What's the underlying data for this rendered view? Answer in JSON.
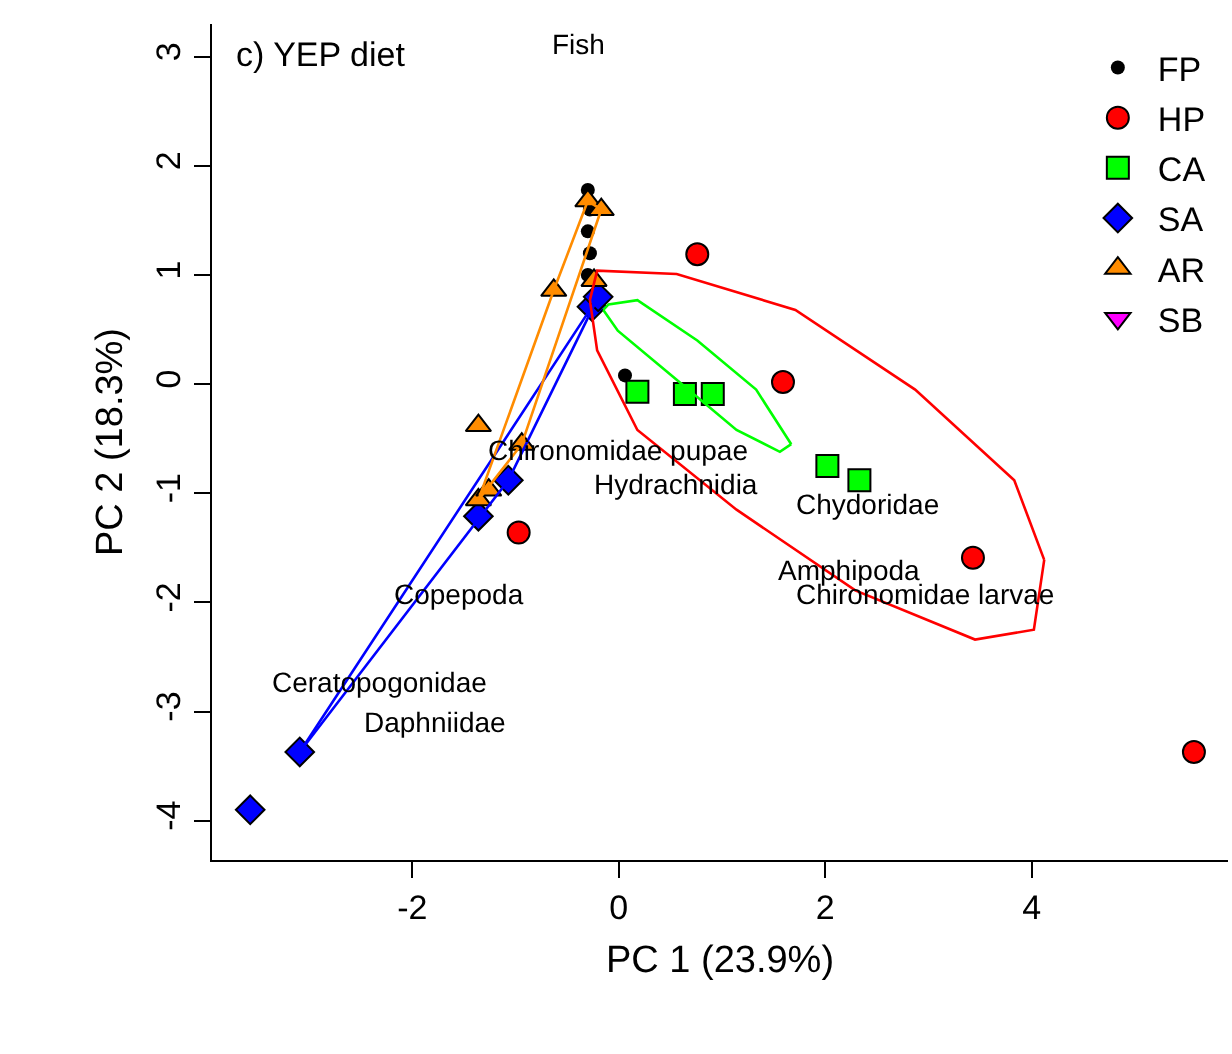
{
  "chart_data": {
    "type": "scatter",
    "title": "c) YEP diet",
    "xlabel": "PC 1 (23.9%)",
    "ylabel": "PC 2 (18.3%)",
    "xlim": [
      -3.94,
      5.9
    ],
    "ylim": [
      -4.36,
      3.3
    ],
    "xticks": [
      -2,
      0,
      2,
      4
    ],
    "yticks": [
      -4,
      -3,
      -2,
      -1,
      0,
      1,
      2,
      3
    ],
    "legend": "top right",
    "series": [
      {
        "name": "FP",
        "color": "#000000",
        "marker": "circle",
        "x": [
          -0.3,
          -0.28,
          -0.3,
          -0.28,
          -0.3,
          0.06
        ],
        "values": [
          1.78,
          1.6,
          1.4,
          1.2,
          1.0,
          0.08
        ]
      },
      {
        "name": "HP",
        "color": "#ff0000",
        "marker": "circle",
        "x": [
          0.76,
          1.59,
          3.43,
          -0.97,
          5.57
        ],
        "values": [
          1.19,
          0.02,
          -1.59,
          -1.36,
          -3.37
        ]
      },
      {
        "name": "CA",
        "color": "#00ff00",
        "marker": "square",
        "x": [
          0.18,
          0.64,
          0.91,
          2.02,
          2.33
        ],
        "values": [
          -0.07,
          -0.09,
          -0.09,
          -0.75,
          -0.88
        ]
      },
      {
        "name": "SA",
        "color": "#0000ff",
        "marker": "diamond",
        "x": [
          -3.57,
          -3.09,
          -1.07,
          -1.36,
          -0.26,
          -0.2
        ],
        "values": [
          -3.9,
          -3.37,
          -0.88,
          -1.21,
          0.71,
          0.8
        ]
      },
      {
        "name": "AR",
        "color": "#ff8c00",
        "marker": "triangle",
        "x": [
          -0.3,
          -0.17,
          -0.63,
          -1.36,
          -0.94,
          -1.36,
          -1.26,
          -0.24
        ],
        "values": [
          1.68,
          1.6,
          0.86,
          -0.38,
          -0.55,
          -1.06,
          -0.97,
          0.95
        ]
      },
      {
        "name": "SB",
        "color": "#ff00ff",
        "marker": "triangle-down"
      },
      {
        "type": "line",
        "color": "#0000ff",
        "x": [
          -3.09,
          -0.26,
          -0.2
        ],
        "values": [
          -3.37,
          0.71,
          0.8
        ]
      },
      {
        "type": "line",
        "color": "#0000ff",
        "x": [
          -3.09,
          -1.07,
          -0.2
        ],
        "values": [
          -3.37,
          -0.88,
          0.8
        ]
      },
      {
        "type": "line",
        "color": "#ff8c00",
        "x": [
          -1.36,
          -0.63,
          -0.3,
          -0.17
        ],
        "values": [
          -1.06,
          0.86,
          1.68,
          1.6
        ]
      },
      {
        "type": "line",
        "color": "#ff8c00",
        "x": [
          -1.36,
          -0.94,
          -0.17
        ],
        "values": [
          -1.06,
          -0.55,
          1.6
        ]
      },
      {
        "type": "line",
        "color": "#00ff00",
        "x": [
          -0.15,
          -0.1,
          0.18,
          0.76,
          1.33,
          1.67
        ],
        "values": [
          0.68,
          0.73,
          0.77,
          0.4,
          -0.05,
          -0.55
        ]
      },
      {
        "type": "line",
        "color": "#00ff00",
        "x": [
          -0.15,
          -0.01,
          0.56,
          1.14,
          1.56,
          1.67
        ],
        "values": [
          0.68,
          0.49,
          0.04,
          -0.42,
          -0.62,
          -0.55
        ]
      },
      {
        "type": "line",
        "color": "#ff0000",
        "x": [
          -0.28,
          -0.21,
          0.56,
          1.71,
          2.87,
          3.83,
          4.12
        ],
        "values": [
          0.77,
          1.04,
          1.01,
          0.68,
          -0.05,
          -0.88,
          -1.61
        ]
      },
      {
        "type": "line",
        "color": "#ff0000",
        "x": [
          -0.28,
          -0.21,
          0.18,
          1.14,
          2.29,
          3.45,
          4.02,
          4.12
        ],
        "values": [
          0.77,
          0.31,
          -0.42,
          -1.15,
          -1.89,
          -2.34,
          -2.25,
          -1.61
        ]
      }
    ],
    "annotations": [
      "Fish",
      "Chironomidae pupae",
      "Hydrachnidia",
      "Chydoridae",
      "Amphipoda",
      "Chironomidae larvae",
      "Copepoda",
      "Ceratopogonidae",
      "Daphniidae"
    ]
  }
}
